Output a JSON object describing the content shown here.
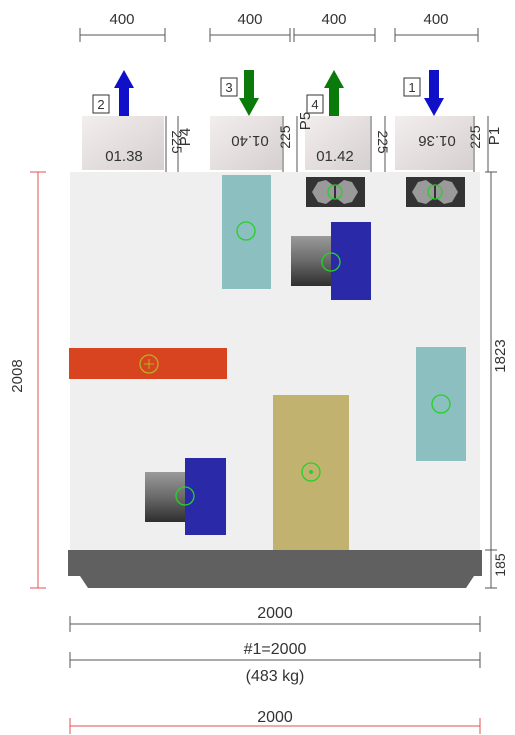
{
  "colors": {
    "dim_line": "#555555",
    "red_dim": "#e05050",
    "casing": "#efefef",
    "base": "#606060",
    "fan_motor": "#2a2aa8",
    "filter": "#8cbfbf",
    "heater": "#d84420",
    "coil": "#c2b270",
    "marker": "#27d027",
    "arrow_blue": "#1010c8",
    "arrow_green": "#0a7a0a"
  },
  "top_widths": [
    "400",
    "400",
    "400",
    "400"
  ],
  "ports": [
    {
      "badge": "2",
      "arrow": "up",
      "arrow_color": "blue",
      "value": "01.38",
      "value_rotated": false,
      "side_label": "P4",
      "small_dim": "225"
    },
    {
      "badge": "3",
      "arrow": "down",
      "arrow_color": "green",
      "value": "01.40",
      "value_rotated": true,
      "side_label": "",
      "small_dim": "225"
    },
    {
      "badge": "4",
      "arrow": "up",
      "arrow_color": "green",
      "value": "01.42",
      "value_rotated": false,
      "side_label": "P5",
      "small_dim": "225"
    },
    {
      "badge": "1",
      "arrow": "down",
      "arrow_color": "blue",
      "value": "01.36",
      "value_rotated": true,
      "side_label": "P1",
      "small_dim": "225"
    }
  ],
  "left_height": "2008",
  "right_height": "1823",
  "base_height": "185",
  "bottom": {
    "width": "2000",
    "unit_width": "#1=2000",
    "weight": "(483 kg)",
    "total_width": "2000"
  },
  "components": [
    {
      "name": "filter",
      "label": ""
    },
    {
      "name": "fan",
      "label": ""
    },
    {
      "name": "heater",
      "label": ""
    },
    {
      "name": "filter",
      "label": ""
    },
    {
      "name": "coil",
      "label": ""
    },
    {
      "name": "fan",
      "label": ""
    }
  ]
}
